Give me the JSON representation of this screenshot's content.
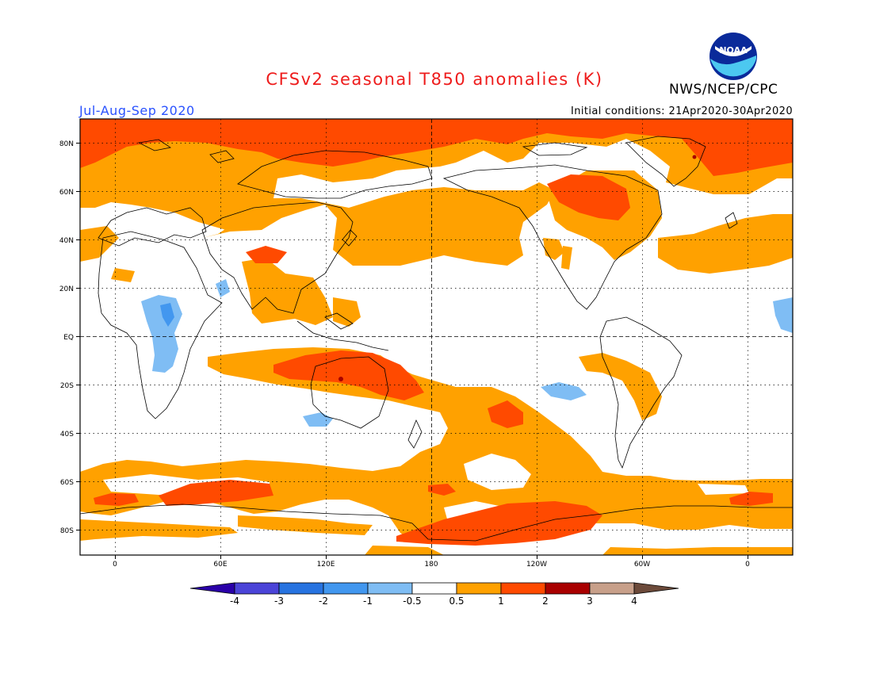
{
  "header": {
    "title": "CFSv2 seasonal T850 anomalies (K)",
    "agency": "NWS/NCEP/CPC",
    "season": "Jul-Aug-Sep 2020",
    "initial_conditions": "Initial conditions: 21Apr2020-30Apr2020",
    "logo_text": "NOAA"
  },
  "map": {
    "lat_labels": [
      "80N",
      "60N",
      "40N",
      "20N",
      "EQ",
      "20S",
      "40S",
      "60S",
      "80S"
    ],
    "lon_labels": [
      "0",
      "60E",
      "120E",
      "180",
      "120W",
      "60W",
      "0"
    ],
    "projection": "cylindrical equidistant, 20W to 20W (360°), 90S to 90N",
    "reference_lines": [
      "equator",
      "180 meridian"
    ]
  },
  "colorbar": {
    "labels": [
      "-4",
      "-3",
      "-2",
      "-1",
      "-0.5",
      "0.5",
      "1",
      "2",
      "3",
      "4"
    ],
    "colors": [
      "#2a00a8",
      "#4b44d8",
      "#2773e0",
      "#4297ef",
      "#7fbdf4",
      "#ffffff",
      "#ffa100",
      "#ff4a00",
      "#a90000",
      "#c8a08a",
      "#6c4a3a"
    ]
  }
}
